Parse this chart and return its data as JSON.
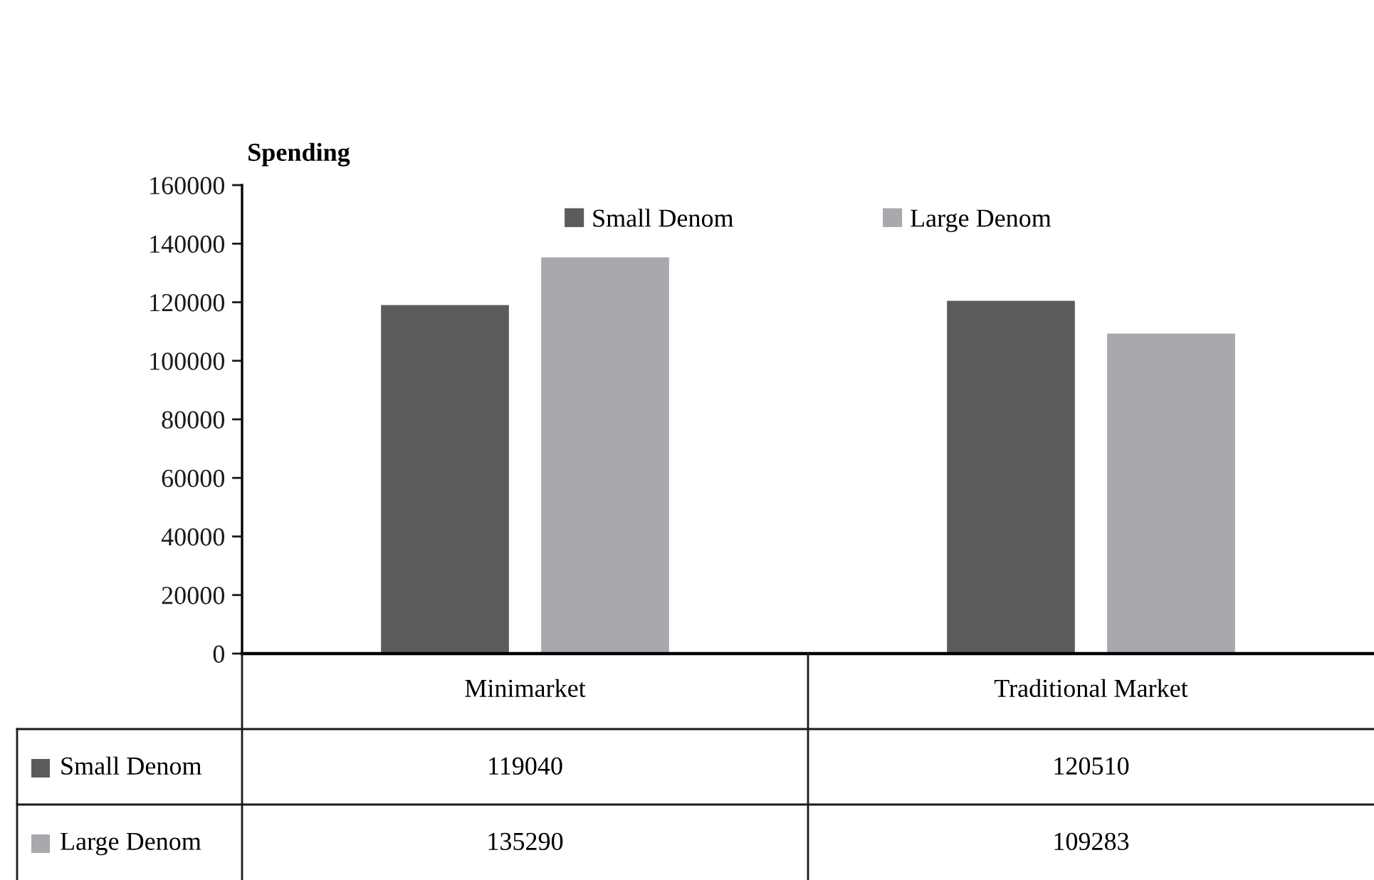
{
  "chart_data": {
    "type": "bar",
    "ylabel": "Spending",
    "categories": [
      "Minimarket",
      "Traditional Market"
    ],
    "series": [
      {
        "name": "Small Denom",
        "color": "#5a5b5d",
        "values": [
          119040,
          120510
        ]
      },
      {
        "name": "Large Denom",
        "color": "#a8a9ac",
        "values": [
          135290,
          109283
        ]
      }
    ],
    "ylim": [
      0,
      160000
    ],
    "yticks": [
      0,
      20000,
      40000,
      60000,
      80000,
      100000,
      120000,
      140000,
      160000
    ],
    "legend": "top",
    "data_labels": true
  }
}
